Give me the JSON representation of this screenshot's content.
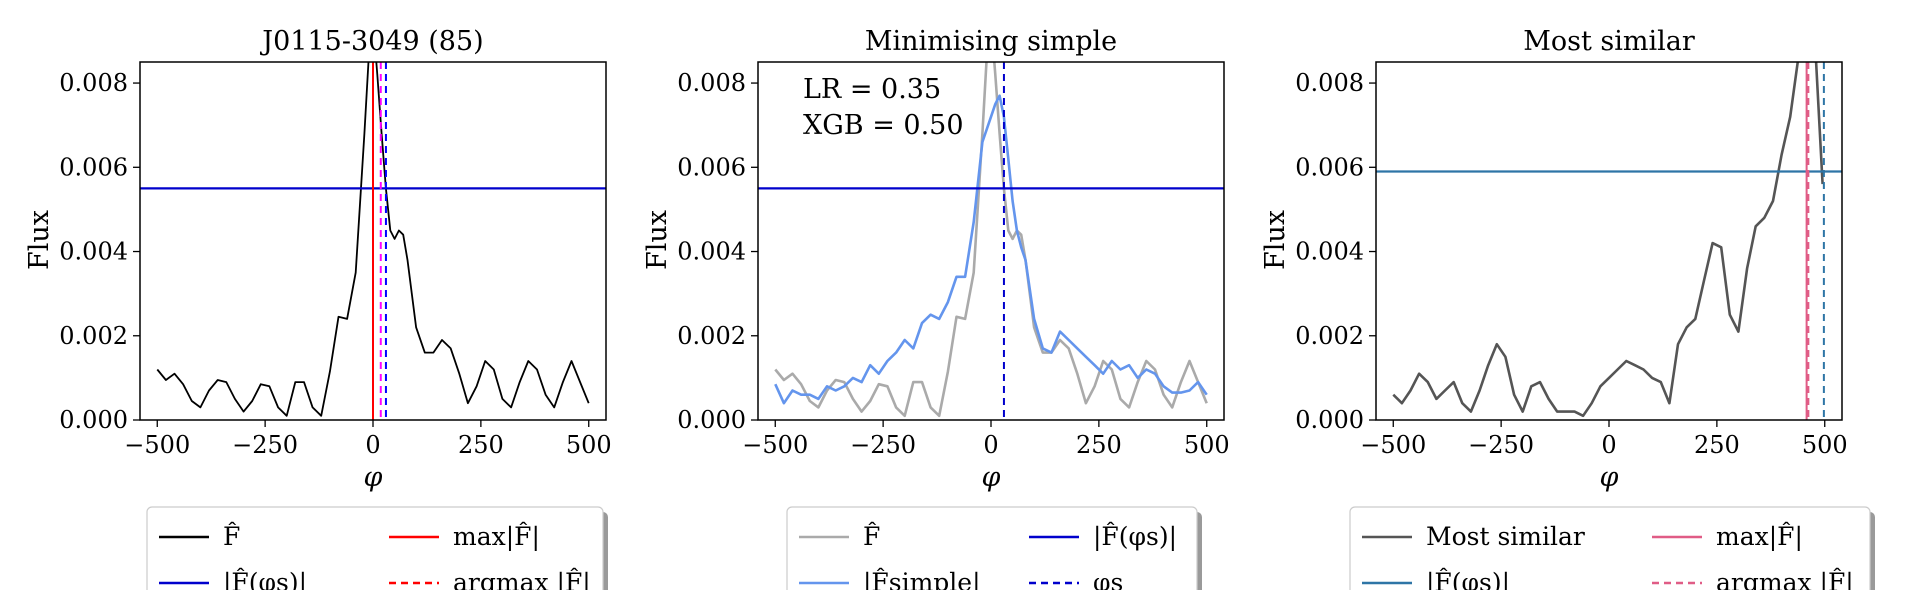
{
  "chart_data": [
    {
      "type": "line",
      "title": "J0115-3049 (85)",
      "xlabel": "φ",
      "ylabel": "Flux",
      "xlim": [
        -540,
        540
      ],
      "ylim": [
        0,
        0.0085
      ],
      "xticks": [
        -500,
        -250,
        0,
        250,
        500
      ],
      "xtick_labels": [
        "−500",
        "−250",
        "0",
        "250",
        "500"
      ],
      "yticks": [
        0,
        0.002,
        0.004,
        0.006,
        0.008
      ],
      "ytick_labels": [
        "0.000",
        "0.002",
        "0.004",
        "0.006",
        "0.008"
      ],
      "series": [
        {
          "name": "F̂",
          "style": "solid",
          "color": "#000000",
          "x": [
            -500,
            -480,
            -460,
            -440,
            -420,
            -400,
            -380,
            -360,
            -340,
            -320,
            -300,
            -280,
            -260,
            -240,
            -220,
            -200,
            -180,
            -160,
            -140,
            -120,
            -100,
            -80,
            -60,
            -40,
            -20,
            -10,
            0,
            10,
            20,
            30,
            40,
            50,
            60,
            70,
            80,
            90,
            100,
            120,
            140,
            160,
            180,
            200,
            220,
            240,
            260,
            280,
            300,
            320,
            340,
            360,
            380,
            400,
            420,
            440,
            460,
            480,
            500
          ],
          "y": [
            0.0012,
            0.00095,
            0.0011,
            0.00085,
            0.00045,
            0.0003,
            0.0007,
            0.00095,
            0.0009,
            0.0005,
            0.0002,
            0.00045,
            0.00085,
            0.0008,
            0.0003,
            0.0001,
            0.0009,
            0.0009,
            0.0003,
            0.0001,
            0.00115,
            0.00245,
            0.0024,
            0.0035,
            0.0068,
            0.0086,
            0.0095,
            0.0082,
            0.0068,
            0.0055,
            0.0045,
            0.0043,
            0.0045,
            0.0044,
            0.0038,
            0.003,
            0.0022,
            0.0016,
            0.0016,
            0.0019,
            0.0017,
            0.0011,
            0.0004,
            0.0008,
            0.0014,
            0.0012,
            0.0005,
            0.0003,
            0.0009,
            0.0014,
            0.0012,
            0.0006,
            0.0003,
            0.0009,
            0.0014,
            0.0009,
            0.0004
          ]
        },
        {
          "name": "|F̂(φs)|",
          "kind": "hline",
          "style": "solid",
          "color": "#0000cc",
          "value": 0.0055
        },
        {
          "name": "max|F̂|",
          "kind": "vline",
          "style": "solid",
          "color": "#ff0000",
          "value": 0
        },
        {
          "name": "argmax |F̂|",
          "kind": "vline",
          "style": "dashed",
          "color": "#ff0000",
          "value": 0
        },
        {
          "name": "",
          "kind": "vline",
          "style": "dashed",
          "color": "#ff00ff",
          "value": 18
        },
        {
          "name": "",
          "kind": "vline",
          "style": "dashed",
          "color": "#0000ff",
          "value": 30
        }
      ],
      "legend": {
        "placement": "below",
        "entries": [
          {
            "label": "F̂",
            "color": "#000000",
            "style": "solid"
          },
          {
            "label": "max|F̂|",
            "color": "#ff0000",
            "style": "solid"
          },
          {
            "label": "|F̂(φs)|",
            "color": "#0000cc",
            "style": "solid"
          },
          {
            "label": "argmax |F̂|",
            "color": "#ff0000",
            "style": "dashed"
          }
        ]
      }
    },
    {
      "type": "line",
      "title": "Minimising simple",
      "xlabel": "φ",
      "ylabel": "Flux",
      "annotations": [
        "LR = 0.35",
        "XGB = 0.50"
      ],
      "xlim": [
        -540,
        540
      ],
      "ylim": [
        0,
        0.0085
      ],
      "xticks": [
        -500,
        -250,
        0,
        250,
        500
      ],
      "xtick_labels": [
        "−500",
        "−250",
        "0",
        "250",
        "500"
      ],
      "yticks": [
        0,
        0.002,
        0.004,
        0.006,
        0.008
      ],
      "ytick_labels": [
        "0.000",
        "0.002",
        "0.004",
        "0.006",
        "0.008"
      ],
      "series": [
        {
          "name": "F̂",
          "style": "solid",
          "color": "#aaaaaa",
          "x": [
            -500,
            -480,
            -460,
            -440,
            -420,
            -400,
            -380,
            -360,
            -340,
            -320,
            -300,
            -280,
            -260,
            -240,
            -220,
            -200,
            -180,
            -160,
            -140,
            -120,
            -100,
            -80,
            -60,
            -40,
            -20,
            -10,
            0,
            10,
            20,
            30,
            40,
            50,
            60,
            70,
            80,
            90,
            100,
            120,
            140,
            160,
            180,
            200,
            220,
            240,
            260,
            280,
            300,
            320,
            340,
            360,
            380,
            400,
            420,
            440,
            460,
            480,
            500
          ],
          "y": [
            0.0012,
            0.00095,
            0.0011,
            0.00085,
            0.00045,
            0.0003,
            0.0007,
            0.00095,
            0.0009,
            0.0005,
            0.0002,
            0.00045,
            0.00085,
            0.0008,
            0.0003,
            0.0001,
            0.0009,
            0.0009,
            0.0003,
            0.0001,
            0.00115,
            0.00245,
            0.0024,
            0.0035,
            0.0068,
            0.0086,
            0.0095,
            0.0082,
            0.0068,
            0.0055,
            0.0045,
            0.0043,
            0.0045,
            0.0044,
            0.0038,
            0.003,
            0.0022,
            0.0016,
            0.0016,
            0.0019,
            0.0017,
            0.0011,
            0.0004,
            0.0008,
            0.0014,
            0.0012,
            0.0005,
            0.0003,
            0.0009,
            0.0014,
            0.0012,
            0.0006,
            0.0003,
            0.0009,
            0.0014,
            0.0009,
            0.0004
          ]
        },
        {
          "name": "|F̂simple|",
          "style": "solid",
          "color": "#6495ed",
          "x": [
            -500,
            -480,
            -460,
            -440,
            -420,
            -400,
            -380,
            -360,
            -340,
            -320,
            -300,
            -280,
            -260,
            -240,
            -220,
            -200,
            -180,
            -160,
            -140,
            -120,
            -100,
            -80,
            -60,
            -40,
            -20,
            0,
            10,
            20,
            30,
            40,
            50,
            60,
            70,
            80,
            90,
            100,
            120,
            140,
            160,
            180,
            200,
            220,
            240,
            260,
            280,
            300,
            320,
            340,
            360,
            380,
            400,
            420,
            440,
            460,
            480,
            500
          ],
          "y": [
            0.00085,
            0.0004,
            0.0007,
            0.0006,
            0.0006,
            0.0005,
            0.0008,
            0.0007,
            0.0008,
            0.001,
            0.0009,
            0.0013,
            0.0011,
            0.0014,
            0.0016,
            0.0019,
            0.0017,
            0.0023,
            0.0025,
            0.0024,
            0.0028,
            0.0034,
            0.0034,
            0.0047,
            0.0066,
            0.0072,
            0.0075,
            0.0077,
            0.0072,
            0.0062,
            0.0052,
            0.0045,
            0.0041,
            0.0038,
            0.0031,
            0.0024,
            0.0017,
            0.0016,
            0.0021,
            0.0019,
            0.0017,
            0.0015,
            0.0013,
            0.0011,
            0.0014,
            0.0012,
            0.0013,
            0.001,
            0.0012,
            0.0011,
            0.0008,
            0.00065,
            0.00065,
            0.0007,
            0.0009,
            0.0006
          ]
        },
        {
          "name": "|F̂(φs)|",
          "kind": "hline",
          "style": "solid",
          "color": "#0000cc",
          "value": 0.0055
        },
        {
          "name": "φs",
          "kind": "vline",
          "style": "dashed",
          "color": "#0000cc",
          "value": 30
        }
      ],
      "legend": {
        "placement": "below",
        "entries": [
          {
            "label": "F̂",
            "color": "#aaaaaa",
            "style": "solid"
          },
          {
            "label": "|F̂(φs)|",
            "color": "#0000cc",
            "style": "solid"
          },
          {
            "label": "|F̂simple|",
            "color": "#6495ed",
            "style": "solid"
          },
          {
            "label": "φs",
            "color": "#0000cc",
            "style": "dashed"
          }
        ]
      }
    },
    {
      "type": "line",
      "title": "Most similar",
      "xlabel": "φ",
      "ylabel": "Flux",
      "xlim": [
        -540,
        540
      ],
      "ylim": [
        0,
        0.0085
      ],
      "xticks": [
        -500,
        -250,
        0,
        250,
        500
      ],
      "xtick_labels": [
        "−500",
        "−250",
        "0",
        "250",
        "500"
      ],
      "yticks": [
        0,
        0.002,
        0.004,
        0.006,
        0.008
      ],
      "ytick_labels": [
        "0.000",
        "0.002",
        "0.004",
        "0.006",
        "0.008"
      ],
      "series": [
        {
          "name": "Most similar",
          "style": "solid",
          "color": "#555555",
          "x": [
            -500,
            -480,
            -460,
            -440,
            -420,
            -400,
            -380,
            -360,
            -340,
            -320,
            -300,
            -280,
            -260,
            -240,
            -220,
            -200,
            -180,
            -160,
            -140,
            -120,
            -100,
            -80,
            -60,
            -40,
            -20,
            0,
            20,
            40,
            60,
            80,
            100,
            120,
            140,
            160,
            180,
            200,
            220,
            240,
            260,
            280,
            300,
            320,
            340,
            360,
            380,
            400,
            420,
            440,
            460,
            480,
            495
          ],
          "y": [
            0.0006,
            0.0004,
            0.0007,
            0.0011,
            0.0009,
            0.0005,
            0.0007,
            0.0009,
            0.0004,
            0.0002,
            0.0007,
            0.0013,
            0.0018,
            0.0015,
            0.0006,
            0.0002,
            0.0008,
            0.0009,
            0.0005,
            0.0002,
            0.0002,
            0.0002,
            0.0001,
            0.0004,
            0.0008,
            0.001,
            0.0012,
            0.0014,
            0.0013,
            0.0012,
            0.001,
            0.0009,
            0.0004,
            0.0018,
            0.0022,
            0.0024,
            0.0033,
            0.0042,
            0.0041,
            0.0025,
            0.0021,
            0.0036,
            0.0046,
            0.0048,
            0.0052,
            0.0063,
            0.0072,
            0.0087,
            0.0095,
            0.0085,
            0.0056
          ]
        },
        {
          "name": "|F̂(φs)|",
          "kind": "hline",
          "style": "solid",
          "color": "#2e75a6",
          "value": 0.0059
        },
        {
          "name": "max|F̂|",
          "kind": "vline",
          "style": "solid",
          "color": "#e05c86",
          "value": 458
        },
        {
          "name": "argmax |F̂|",
          "kind": "vline",
          "style": "dashed",
          "color": "#e05c86",
          "value": 462
        },
        {
          "name": "",
          "kind": "vline",
          "style": "dashed",
          "color": "#2e75a6",
          "value": 498
        }
      ],
      "legend": {
        "placement": "below",
        "entries": [
          {
            "label": "Most similar",
            "color": "#555555",
            "style": "solid"
          },
          {
            "label": "max|F̂|",
            "color": "#e05c86",
            "style": "solid"
          },
          {
            "label": "|F̂(φs)|",
            "color": "#2e75a6",
            "style": "solid"
          },
          {
            "label": "argmax |F̂|",
            "color": "#e05c86",
            "style": "dashed"
          }
        ]
      }
    }
  ]
}
